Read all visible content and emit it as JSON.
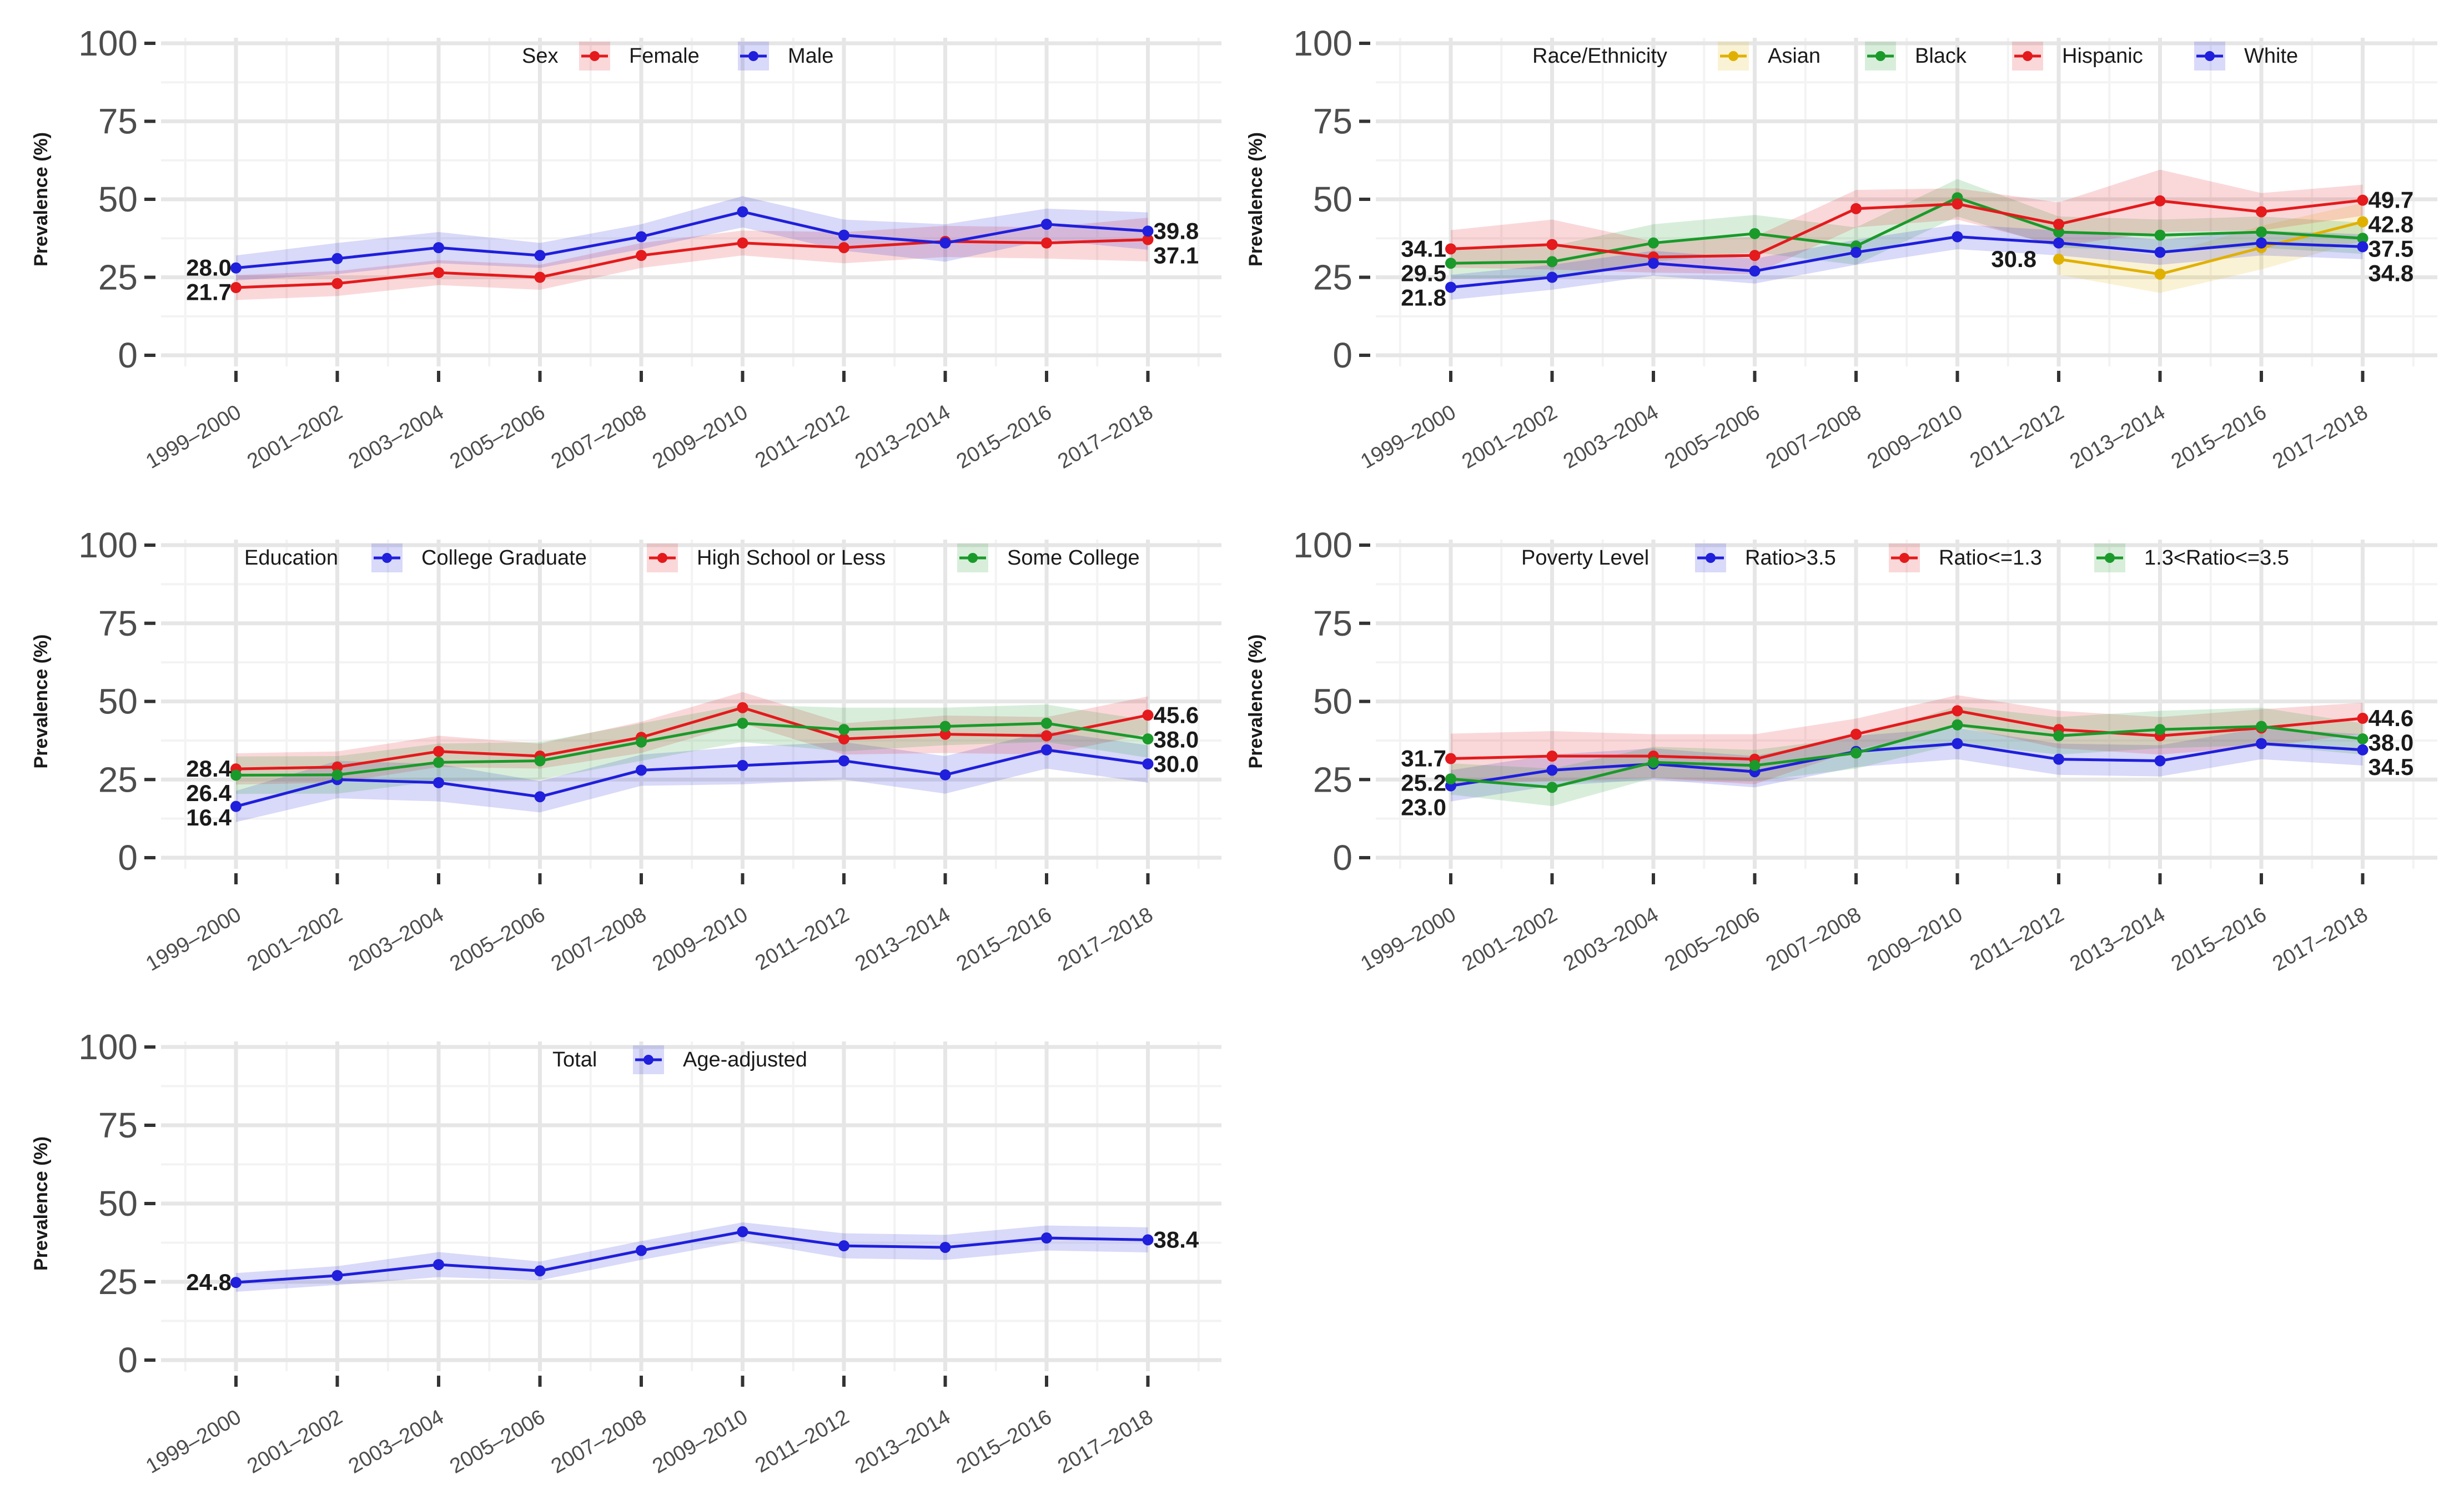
{
  "colors": {
    "red": "#e41a1c",
    "blue": "#1f1fdc",
    "green": "#1a9a2a",
    "gold": "#e0b000",
    "grid_major": "#e6e6e6",
    "grid_minor": "#f3f3f3"
  },
  "ylabel": "Prevalence (%)",
  "chart_data": [
    {
      "type": "line",
      "title": "",
      "legend_title": "Sex",
      "xlabel": "",
      "ylabel": "Prevalence (%)",
      "ylim": [
        0,
        100
      ],
      "yticks": [
        "0",
        "25",
        "50",
        "75",
        "100"
      ],
      "categories": [
        "1999–2000",
        "2001–2002",
        "2003–2004",
        "2005–2006",
        "2007–2008",
        "2009–2010",
        "2011–2012",
        "2013–2014",
        "2015–2016",
        "2017–2018"
      ],
      "series": [
        {
          "name": "Female",
          "color": "#e41a1c",
          "values": [
            21.7,
            23.0,
            26.5,
            25.0,
            32.0,
            36.0,
            34.5,
            36.5,
            36.0,
            37.1
          ],
          "band": [
            4,
            4,
            4,
            4,
            4,
            4,
            5,
            5,
            5,
            7
          ]
        },
        {
          "name": "Male",
          "color": "#1f1fdc",
          "values": [
            28.0,
            31.0,
            34.5,
            32.0,
            38.0,
            46.0,
            38.5,
            36.0,
            42.0,
            39.8
          ],
          "band": [
            4,
            5,
            5,
            4,
            4,
            5,
            5,
            6,
            5,
            6
          ]
        }
      ],
      "annotations": [
        {
          "text": "28.0",
          "series": 1,
          "index": 0,
          "side": "left"
        },
        {
          "text": "21.7",
          "series": 0,
          "index": 0,
          "side": "left"
        },
        {
          "text": "39.8",
          "series": 1,
          "index": 9,
          "side": "right"
        },
        {
          "text": "37.1",
          "series": 0,
          "index": 9,
          "side": "right"
        }
      ]
    },
    {
      "type": "line",
      "title": "",
      "legend_title": "Race/Ethnicity",
      "xlabel": "",
      "ylabel": "Prevalence (%)",
      "ylim": [
        0,
        100
      ],
      "yticks": [
        "0",
        "25",
        "50",
        "75",
        "100"
      ],
      "categories": [
        "1999–2000",
        "2001–2002",
        "2003–2004",
        "2005–2006",
        "2007–2008",
        "2009–2010",
        "2011–2012",
        "2013–2014",
        "2015–2016",
        "2017–2018"
      ],
      "series": [
        {
          "name": "Asian",
          "color": "#e0b000",
          "values": [
            null,
            null,
            null,
            null,
            null,
            null,
            30.8,
            26.0,
            34.5,
            42.8
          ],
          "band": [
            0,
            0,
            0,
            0,
            0,
            0,
            5,
            6,
            7,
            6
          ]
        },
        {
          "name": "Black",
          "color": "#1a9a2a",
          "values": [
            29.5,
            30.0,
            36.0,
            39.0,
            35.0,
            50.5,
            39.5,
            38.5,
            39.5,
            37.5
          ],
          "band": [
            5,
            5,
            6,
            6,
            6,
            6,
            5,
            5,
            5,
            5
          ]
        },
        {
          "name": "Hispanic",
          "color": "#e41a1c",
          "values": [
            34.1,
            35.5,
            31.5,
            32.0,
            47.0,
            48.5,
            42.0,
            49.5,
            46.0,
            49.7
          ],
          "band": [
            6,
            8,
            5,
            6,
            6,
            5,
            7,
            10,
            6,
            5
          ]
        },
        {
          "name": "White",
          "color": "#1f1fdc",
          "values": [
            21.8,
            25.0,
            29.5,
            27.0,
            33.0,
            38.0,
            36.0,
            33.0,
            36.0,
            34.8
          ],
          "band": [
            4,
            4,
            4,
            4,
            4,
            4,
            4,
            4,
            4,
            4
          ]
        }
      ],
      "annotations": [
        {
          "text": "34.1",
          "series": 2,
          "index": 0,
          "side": "left"
        },
        {
          "text": "29.5",
          "series": 1,
          "index": 0,
          "side": "left"
        },
        {
          "text": "21.8",
          "series": 3,
          "index": 0,
          "side": "left"
        },
        {
          "text": "30.8",
          "series": 0,
          "index": 6,
          "side": "left"
        },
        {
          "text": "49.7",
          "series": 2,
          "index": 9,
          "side": "right"
        },
        {
          "text": "42.8",
          "series": 0,
          "index": 9,
          "side": "right"
        },
        {
          "text": "37.5",
          "series": 1,
          "index": 9,
          "side": "right"
        },
        {
          "text": "34.8",
          "series": 3,
          "index": 9,
          "side": "right"
        }
      ]
    },
    {
      "type": "line",
      "title": "",
      "legend_title": "Education",
      "xlabel": "",
      "ylabel": "Prevalence (%)",
      "ylim": [
        0,
        100
      ],
      "yticks": [
        "0",
        "25",
        "50",
        "75",
        "100"
      ],
      "categories": [
        "1999–2000",
        "2001–2002",
        "2003–2004",
        "2005–2006",
        "2007–2008",
        "2009–2010",
        "2011–2012",
        "2013–2014",
        "2015–2016",
        "2017–2018"
      ],
      "series": [
        {
          "name": "College Graduate",
          "color": "#1f1fdc",
          "values": [
            16.4,
            25.0,
            24.0,
            19.5,
            28.0,
            29.5,
            31.0,
            26.5,
            34.5,
            30.0
          ],
          "band": [
            5,
            6,
            6,
            5,
            5,
            6,
            6,
            6,
            6,
            6
          ]
        },
        {
          "name": "High School or Less",
          "color": "#e41a1c",
          "values": [
            28.4,
            29.0,
            34.0,
            32.5,
            38.5,
            48.0,
            38.0,
            39.5,
            39.0,
            45.6
          ],
          "band": [
            5,
            5,
            5,
            4,
            5,
            5,
            5,
            6,
            6,
            6
          ]
        },
        {
          "name": "Some College",
          "color": "#1a9a2a",
          "values": [
            26.4,
            26.5,
            30.5,
            31.0,
            37.0,
            43.0,
            41.0,
            42.0,
            43.0,
            38.0
          ],
          "band": [
            6,
            6,
            6,
            6,
            6,
            6,
            7,
            6,
            6,
            6
          ]
        }
      ],
      "annotations": [
        {
          "text": "28.4",
          "series": 1,
          "index": 0,
          "side": "left"
        },
        {
          "text": "26.4",
          "series": 2,
          "index": 0,
          "side": "left"
        },
        {
          "text": "16.4",
          "series": 0,
          "index": 0,
          "side": "left"
        },
        {
          "text": "45.6",
          "series": 1,
          "index": 9,
          "side": "right"
        },
        {
          "text": "38.0",
          "series": 2,
          "index": 9,
          "side": "right"
        },
        {
          "text": "30.0",
          "series": 0,
          "index": 9,
          "side": "right"
        }
      ]
    },
    {
      "type": "line",
      "title": "",
      "legend_title": "Poverty Level",
      "xlabel": "",
      "ylabel": "Prevalence (%)",
      "ylim": [
        0,
        100
      ],
      "yticks": [
        "0",
        "25",
        "50",
        "75",
        "100"
      ],
      "categories": [
        "1999–2000",
        "2001–2002",
        "2003–2004",
        "2005–2006",
        "2007–2008",
        "2009–2010",
        "2011–2012",
        "2013–2014",
        "2015–2016",
        "2017–2018"
      ],
      "series": [
        {
          "name": "Ratio>3.5",
          "color": "#1f1fdc",
          "values": [
            23.0,
            28.0,
            30.0,
            27.5,
            34.0,
            36.5,
            31.5,
            31.0,
            36.5,
            34.5
          ],
          "band": [
            5,
            5,
            5,
            5,
            5,
            5,
            5,
            5,
            5,
            5
          ]
        },
        {
          "name": "Ratio<=1.3",
          "color": "#e41a1c",
          "values": [
            31.7,
            32.5,
            32.5,
            31.5,
            39.5,
            47.0,
            41.0,
            39.0,
            41.5,
            44.6
          ],
          "band": [
            8,
            8,
            7,
            8,
            5,
            5,
            6,
            6,
            6,
            5
          ]
        },
        {
          "name": "1.3<Ratio<=3.5",
          "color": "#1a9a2a",
          "values": [
            25.2,
            22.5,
            30.5,
            29.5,
            33.5,
            42.5,
            39.0,
            41.0,
            42.0,
            38.0
          ],
          "band": [
            5,
            6,
            5,
            5,
            5,
            6,
            6,
            6,
            6,
            5
          ]
        }
      ],
      "annotations": [
        {
          "text": "31.7",
          "series": 1,
          "index": 0,
          "side": "left"
        },
        {
          "text": "25.2",
          "series": 2,
          "index": 0,
          "side": "left"
        },
        {
          "text": "23.0",
          "series": 0,
          "index": 0,
          "side": "left"
        },
        {
          "text": "44.6",
          "series": 1,
          "index": 9,
          "side": "right"
        },
        {
          "text": "38.0",
          "series": 2,
          "index": 9,
          "side": "right"
        },
        {
          "text": "34.5",
          "series": 0,
          "index": 9,
          "side": "right"
        }
      ]
    },
    {
      "type": "line",
      "title": "",
      "legend_title": "Total",
      "xlabel": "",
      "ylabel": "Prevalence (%)",
      "ylim": [
        0,
        100
      ],
      "yticks": [
        "0",
        "25",
        "50",
        "75",
        "100"
      ],
      "categories": [
        "1999–2000",
        "2001–2002",
        "2003–2004",
        "2005–2006",
        "2007–2008",
        "2009–2010",
        "2011–2012",
        "2013–2014",
        "2015–2016",
        "2017–2018"
      ],
      "series": [
        {
          "name": "Age-adjusted",
          "color": "#1f1fdc",
          "values": [
            24.8,
            27.0,
            30.5,
            28.5,
            35.0,
            41.0,
            36.5,
            36.0,
            39.0,
            38.4
          ],
          "band": [
            3,
            3,
            4,
            3,
            3,
            3,
            4,
            4,
            4,
            4
          ]
        }
      ],
      "annotations": [
        {
          "text": "24.8",
          "series": 0,
          "index": 0,
          "side": "left"
        },
        {
          "text": "38.4",
          "series": 0,
          "index": 9,
          "side": "right"
        }
      ]
    }
  ]
}
